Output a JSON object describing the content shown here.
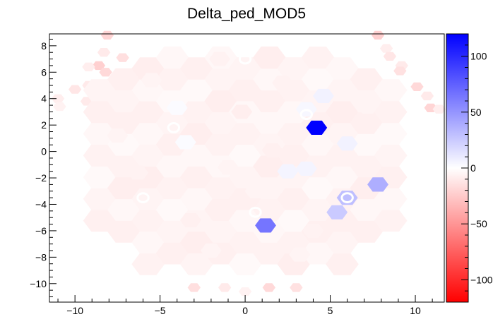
{
  "chart_data": {
    "type": "heatmap",
    "title": "Delta_ped_MOD5",
    "xlabel": "",
    "ylabel": "",
    "xlim": [
      -11.5,
      11.7
    ],
    "ylim": [
      -11.4,
      8.9
    ],
    "x_ticks": [
      -10,
      -5,
      0,
      5,
      10
    ],
    "x_tick_labels": [
      "−10",
      "−5",
      "0",
      "5",
      "10"
    ],
    "y_ticks": [
      -10,
      -8,
      -6,
      -4,
      -2,
      0,
      2,
      4,
      6,
      8
    ],
    "y_tick_labels": [
      "−10",
      "−8",
      "−6",
      "−4",
      "−2",
      "0",
      "2",
      "4",
      "6",
      "8"
    ],
    "colorbar": {
      "min": -120,
      "max": 120,
      "ticks": [
        100,
        50,
        0,
        -50,
        -100
      ],
      "tick_labels": [
        "100",
        "50",
        "0",
        "−50",
        "−100"
      ],
      "colors": {
        "low": "#ff0000",
        "mid": "#ffffff",
        "high": "#0000ff"
      }
    },
    "cell_size": 1.0,
    "baseline_value": -4,
    "cells": [
      {
        "x": 4.2,
        "y": 1.8,
        "value": 120
      },
      {
        "x": 1.2,
        "y": -5.6,
        "value": 65
      },
      {
        "x": 7.8,
        "y": -2.5,
        "value": 38
      },
      {
        "x": 6.0,
        "y": -3.5,
        "value": 30
      },
      {
        "x": 5.4,
        "y": -4.6,
        "value": 25
      },
      {
        "x": 4.6,
        "y": 4.2,
        "value": 6
      },
      {
        "x": 2.5,
        "y": -1.5,
        "value": 5
      },
      {
        "x": 3.6,
        "y": -1.3,
        "value": 5
      },
      {
        "x": 6.0,
        "y": 0.6,
        "value": 6
      },
      {
        "x": 3.6,
        "y": 3.2,
        "value": 4
      },
      {
        "x": -4.0,
        "y": 3.3,
        "value": 2
      },
      {
        "x": -3.5,
        "y": 0.7,
        "value": 2
      },
      {
        "x": -1.5,
        "y": 7.0,
        "value": -6
      },
      {
        "x": -3.2,
        "y": -5.2,
        "value": -7
      },
      {
        "x": 1.6,
        "y": 0.1,
        "value": -7
      },
      {
        "x": -0.2,
        "y": 3.0,
        "value": -8
      },
      {
        "x": 2.2,
        "y": 5.2,
        "value": -6
      },
      {
        "x": -5.5,
        "y": 5.4,
        "value": -5
      },
      {
        "x": 4.0,
        "y": -6.0,
        "value": -6
      },
      {
        "x": -6.3,
        "y": -1.6,
        "value": -6
      },
      {
        "x": 0.6,
        "y": -3.0,
        "value": -5
      },
      {
        "x": -2.0,
        "y": -7.5,
        "value": -5
      },
      {
        "x": 3.2,
        "y": -7.8,
        "value": -5
      },
      {
        "x": -7.5,
        "y": 1.2,
        "value": -5
      },
      {
        "x": 7.2,
        "y": 3.4,
        "value": -5
      },
      {
        "x": -1.0,
        "y": -1.2,
        "value": -5
      }
    ],
    "outer_cells": [
      {
        "x": -8.1,
        "y": 8.8,
        "value": -20
      },
      {
        "x": -8.3,
        "y": 7.5,
        "value": -10
      },
      {
        "x": -7.2,
        "y": 7.1,
        "value": -15
      },
      {
        "x": -8.6,
        "y": 6.5,
        "value": -22
      },
      {
        "x": -9.2,
        "y": 6.4,
        "value": -8
      },
      {
        "x": -9.2,
        "y": 5.0,
        "value": -10
      },
      {
        "x": -8.2,
        "y": 6.0,
        "value": -18
      },
      {
        "x": -10.0,
        "y": 4.7,
        "value": -12
      },
      {
        "x": -11.0,
        "y": 4.0,
        "value": -8
      },
      {
        "x": -9.3,
        "y": 3.8,
        "value": -10
      },
      {
        "x": -10.9,
        "y": 3.4,
        "value": -6
      },
      {
        "x": 7.8,
        "y": 8.8,
        "value": -22
      },
      {
        "x": 8.3,
        "y": 7.8,
        "value": -8
      },
      {
        "x": 8.5,
        "y": 7.2,
        "value": -12
      },
      {
        "x": 9.2,
        "y": 6.5,
        "value": -10
      },
      {
        "x": 9.1,
        "y": 6.1,
        "value": -14
      },
      {
        "x": 10.1,
        "y": 4.9,
        "value": -18
      },
      {
        "x": 10.7,
        "y": 4.2,
        "value": -10
      },
      {
        "x": 10.9,
        "y": 3.3,
        "value": -20
      },
      {
        "x": 11.4,
        "y": 3.2,
        "value": -8
      },
      {
        "x": -3.0,
        "y": -10.3,
        "value": -15
      },
      {
        "x": -1.2,
        "y": -10.3,
        "value": -10
      },
      {
        "x": 0.0,
        "y": -10.6,
        "value": -6
      },
      {
        "x": 1.4,
        "y": -10.3,
        "value": -18
      },
      {
        "x": 3.0,
        "y": -10.3,
        "value": -14
      }
    ],
    "rings": [
      {
        "x": 0.0,
        "y": 7.0
      },
      {
        "x": -4.2,
        "y": 1.8
      },
      {
        "x": 3.6,
        "y": 2.8
      },
      {
        "x": -6.0,
        "y": -3.5
      },
      {
        "x": 0.6,
        "y": -4.6
      },
      {
        "x": 6.0,
        "y": -3.5
      }
    ]
  }
}
